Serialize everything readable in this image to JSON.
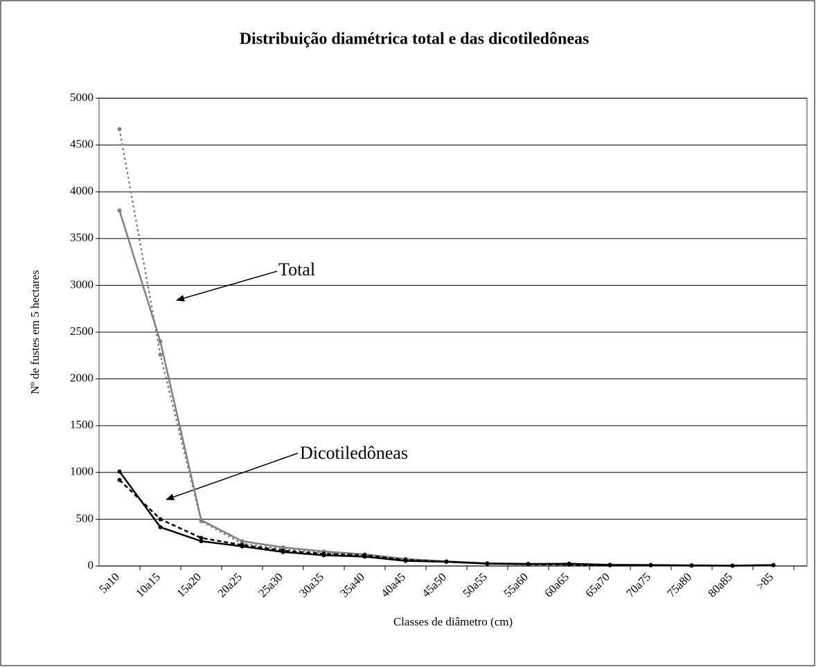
{
  "chart_data": {
    "type": "line",
    "title": "Distribuição diamétrica total e das dicotiledôneas",
    "x_label": "Classes de diâmetro (cm)",
    "y_label": "Nº de fustes em 5 hectares",
    "annotations": [
      "Total",
      "Dicotiledôneas"
    ],
    "categories": [
      "5a10",
      "10a15",
      "15a20",
      "20a25",
      "25a30",
      "30a35",
      "35a40",
      "40a45",
      "45a50",
      "50a55",
      "55a60",
      "60a65",
      "65a70",
      "70a75",
      "75a80",
      "80a85",
      ">85"
    ],
    "series": [
      {
        "color": "#808080",
        "dash": "solid",
        "values": [
          3800,
          2400,
          490,
          265,
          200,
          155,
          125,
          75,
          50,
          30,
          25,
          20,
          15,
          10,
          8,
          5,
          10
        ]
      },
      {
        "color": "#808080",
        "dash": "dotted",
        "values": [
          4670,
          2260,
          480,
          240,
          180,
          140,
          110,
          70,
          45,
          25,
          20,
          15,
          10,
          8,
          5,
          3,
          8
        ]
      },
      {
        "color": "#000000",
        "dash": "solid",
        "values": [
          1010,
          415,
          265,
          210,
          150,
          115,
          100,
          55,
          45,
          25,
          20,
          25,
          10,
          10,
          5,
          3,
          10
        ]
      },
      {
        "color": "#000000",
        "dash": "dashed",
        "values": [
          920,
          500,
          300,
          225,
          165,
          130,
          115,
          65,
          45,
          25,
          18,
          15,
          8,
          8,
          5,
          3,
          8
        ]
      }
    ],
    "ylim": [
      0,
      5000
    ],
    "yticks": [
      0,
      500,
      1000,
      1500,
      2000,
      2500,
      3000,
      3500,
      4000,
      4500,
      5000
    ],
    "grid": true
  }
}
